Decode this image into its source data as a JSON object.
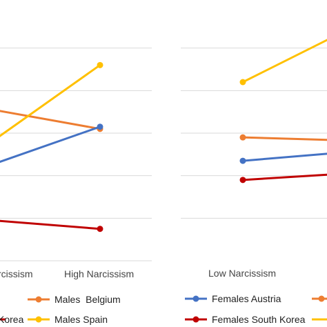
{
  "chart_data": [
    {
      "type": "line",
      "panel": "males",
      "categories": [
        "Low Narcissism",
        "High Narcissism"
      ],
      "category_labels_visible": [
        "rcissism",
        "High Narcissism"
      ],
      "gridlines": true,
      "series": [
        {
          "name": "Males Belgium",
          "color": "#ED7D31",
          "values": [
            null,
            3.1
          ]
        },
        {
          "name": "Males Spain",
          "color": "#FFC000",
          "values": [
            null,
            4.6
          ]
        },
        {
          "name": null,
          "color": "#4472C4",
          "values": [
            null,
            3.15
          ]
        },
        {
          "name": null,
          "color": "#C00000",
          "values": [
            null,
            0.75
          ]
        }
      ],
      "legend": [
        {
          "label": "Males  Belgium",
          "color": "#ED7D31"
        },
        {
          "label": "Males Spain",
          "color": "#FFC000"
        },
        {
          "label": "Korea",
          "color": "#C00000"
        }
      ]
    },
    {
      "type": "line",
      "panel": "females",
      "categories": [
        "Low Narcissism",
        "High Narcissism"
      ],
      "category_labels_visible": [
        "Low Narcissism"
      ],
      "gridlines": true,
      "series": [
        {
          "name": null,
          "color": "#FFC000",
          "values": [
            4.2,
            null
          ]
        },
        {
          "name": null,
          "color": "#ED7D31",
          "values": [
            2.9,
            null
          ]
        },
        {
          "name": "Females Austria",
          "color": "#4472C4",
          "values": [
            2.35,
            null
          ]
        },
        {
          "name": "Females South Korea",
          "color": "#C00000",
          "values": [
            1.9,
            null
          ]
        }
      ],
      "legend": [
        {
          "label": "Females Austria",
          "color": "#4472C4"
        },
        {
          "label": "Females South Korea",
          "color": "#C00000"
        }
      ]
    }
  ]
}
